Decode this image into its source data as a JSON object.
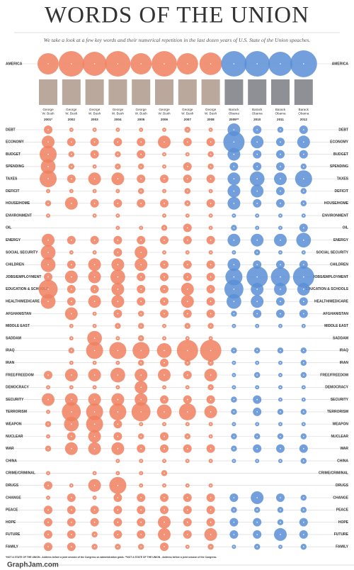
{
  "chart_data": {
    "type": "bubble-grid",
    "title": "WORDS OF THE UNION",
    "subtitle": "We take a look at a few key words and their numerical repetition in the last dozen years of U.S. State of the Union speaches.",
    "categories": [
      "2001*",
      "2002",
      "2003",
      "2004",
      "2005",
      "2006",
      "2007",
      "2008",
      "2009**",
      "2010",
      "2011",
      "2012"
    ],
    "presidents": [
      "George W. Bush",
      "George W. Bush",
      "George W. Bush",
      "George W. Bush",
      "George W. Bush",
      "George W. Bush",
      "George W. Bush",
      "George W. Bush",
      "Barack Obama",
      "Barack Obama",
      "Barack Obama",
      "Barack Obama"
    ],
    "column_colors": [
      "#f0805f",
      "#f0805f",
      "#f0805f",
      "#f0805f",
      "#f0805f",
      "#f0805f",
      "#f0805f",
      "#f0805f",
      "#5b8fd6",
      "#5b8fd6",
      "#5b8fd6",
      "#5b8fd6"
    ],
    "series": [
      {
        "name": "AMERICA",
        "values": [
          25,
          36,
          32,
          36,
          25,
          36,
          25,
          28,
          36,
          36,
          32,
          40
        ]
      },
      {
        "name": "DEBT",
        "values": [
          4,
          1,
          1,
          1,
          1,
          1,
          2,
          1,
          9,
          4,
          2,
          4
        ]
      },
      {
        "name": "ECONOMY",
        "values": [
          9,
          4,
          4,
          4,
          4,
          9,
          4,
          4,
          25,
          9,
          4,
          9
        ]
      },
      {
        "name": "BUDGET",
        "values": [
          16,
          2,
          4,
          2,
          4,
          1,
          1,
          2,
          9,
          4,
          4,
          4
        ]
      },
      {
        "name": "SPENDING",
        "values": [
          12,
          2,
          1,
          2,
          2,
          1,
          4,
          2,
          4,
          4,
          4,
          2
        ]
      },
      {
        "name": "TAXES",
        "values": [
          16,
          4,
          9,
          9,
          4,
          4,
          4,
          4,
          9,
          12,
          9,
          16
        ]
      },
      {
        "name": "DEFICIT",
        "values": [
          1,
          1,
          1,
          1,
          2,
          1,
          2,
          1,
          9,
          9,
          4,
          2
        ]
      },
      {
        "name": "HOUSE/HOME",
        "values": [
          2,
          9,
          4,
          4,
          4,
          4,
          2,
          4,
          9,
          4,
          4,
          2
        ]
      },
      {
        "name": "ENVIRONMENT",
        "values": [
          1,
          0,
          1,
          1,
          0,
          1,
          1,
          1,
          1,
          1,
          1,
          1
        ]
      },
      {
        "name": "OIL",
        "values": [
          0,
          0,
          0,
          1,
          1,
          2,
          4,
          1,
          2,
          1,
          1,
          4
        ]
      },
      {
        "name": "ENERGY",
        "values": [
          9,
          4,
          4,
          4,
          4,
          4,
          4,
          4,
          9,
          9,
          9,
          12
        ]
      },
      {
        "name": "SOCIAL SECURITY",
        "values": [
          12,
          1,
          1,
          4,
          9,
          1,
          1,
          1,
          1,
          2,
          1,
          1
        ]
      },
      {
        "name": "CHILDREN",
        "values": [
          12,
          4,
          9,
          9,
          9,
          4,
          4,
          4,
          9,
          4,
          4,
          4
        ]
      },
      {
        "name": "JOBS/EMPLOYMENT",
        "values": [
          4,
          9,
          9,
          12,
          4,
          4,
          4,
          4,
          16,
          25,
          20,
          25
        ]
      },
      {
        "name": "EDUCATION & SCHOOLS",
        "values": [
          20,
          4,
          4,
          9,
          4,
          4,
          9,
          4,
          20,
          9,
          9,
          9
        ]
      },
      {
        "name": "HEALTH/MEDICARE",
        "values": [
          12,
          4,
          9,
          9,
          4,
          4,
          9,
          4,
          12,
          9,
          4,
          4
        ]
      },
      {
        "name": "AFGHANISTAN",
        "values": [
          0,
          9,
          1,
          4,
          2,
          4,
          4,
          4,
          2,
          4,
          4,
          4
        ]
      },
      {
        "name": "MIDDLE EAST",
        "values": [
          0,
          1,
          1,
          2,
          2,
          1,
          2,
          2,
          1,
          1,
          1,
          1
        ]
      },
      {
        "name": "SADDAM",
        "values": [
          0,
          1,
          12,
          1,
          2,
          1,
          1,
          1,
          0,
          0,
          0,
          0
        ]
      },
      {
        "name": "IRAQ",
        "values": [
          0,
          2,
          16,
          16,
          16,
          12,
          25,
          25,
          2,
          2,
          2,
          2
        ]
      },
      {
        "name": "IRAN",
        "values": [
          0,
          1,
          1,
          1,
          2,
          4,
          2,
          2,
          1,
          1,
          1,
          2
        ]
      },
      {
        "name": "FREE/FREEDOM",
        "values": [
          4,
          9,
          9,
          12,
          9,
          9,
          4,
          9,
          1,
          2,
          1,
          2
        ]
      },
      {
        "name": "DEMOCRACY",
        "values": [
          1,
          1,
          1,
          1,
          9,
          1,
          1,
          2,
          1,
          1,
          1,
          1
        ]
      },
      {
        "name": "SECURITY",
        "values": [
          9,
          9,
          9,
          9,
          9,
          4,
          4,
          4,
          2,
          4,
          1,
          1
        ]
      },
      {
        "name": "TERRORISM",
        "values": [
          1,
          20,
          16,
          16,
          20,
          12,
          16,
          9,
          2,
          4,
          2,
          2
        ]
      },
      {
        "name": "WEAPON",
        "values": [
          2,
          12,
          16,
          4,
          1,
          1,
          1,
          1,
          1,
          1,
          1,
          1
        ]
      },
      {
        "name": "NUCLEAR",
        "values": [
          1,
          4,
          9,
          4,
          2,
          4,
          2,
          1,
          2,
          2,
          2,
          2
        ]
      },
      {
        "name": "WAR",
        "values": [
          2,
          9,
          9,
          9,
          4,
          4,
          4,
          4,
          2,
          4,
          4,
          4
        ]
      },
      {
        "name": "CHINA",
        "values": [
          0,
          0,
          0,
          1,
          1,
          1,
          1,
          1,
          1,
          1,
          1,
          2
        ]
      },
      {
        "name": "CRIME/CRIMINAL",
        "values": [
          1,
          0,
          1,
          1,
          1,
          2,
          0,
          0,
          0,
          0,
          0,
          0
        ]
      },
      {
        "name": "DRUGS",
        "values": [
          4,
          1,
          9,
          16,
          1,
          1,
          1,
          1,
          0,
          0,
          0,
          0
        ]
      },
      {
        "name": "CHANGE",
        "values": [
          1,
          4,
          1,
          4,
          4,
          4,
          4,
          4,
          4,
          9,
          4,
          2
        ]
      },
      {
        "name": "PEACE",
        "values": [
          4,
          4,
          4,
          4,
          4,
          4,
          4,
          4,
          2,
          2,
          2,
          2
        ]
      },
      {
        "name": "HOPE",
        "values": [
          4,
          4,
          4,
          4,
          4,
          9,
          4,
          4,
          4,
          4,
          2,
          4
        ]
      },
      {
        "name": "FUTURE",
        "values": [
          4,
          4,
          2,
          4,
          4,
          9,
          4,
          9,
          4,
          4,
          9,
          4
        ]
      },
      {
        "name": "FAMILY",
        "values": [
          4,
          4,
          2,
          2,
          2,
          4,
          1,
          2,
          1,
          2,
          1,
          2
        ]
      }
    ],
    "footnote": "*NOT A STATE OF THE UNION - Address before a joint session of the Congress on administration goals. **NOT A STATE OF THE UNION - Address before a joint session of the Congress.",
    "source": "GraphJam.com"
  }
}
